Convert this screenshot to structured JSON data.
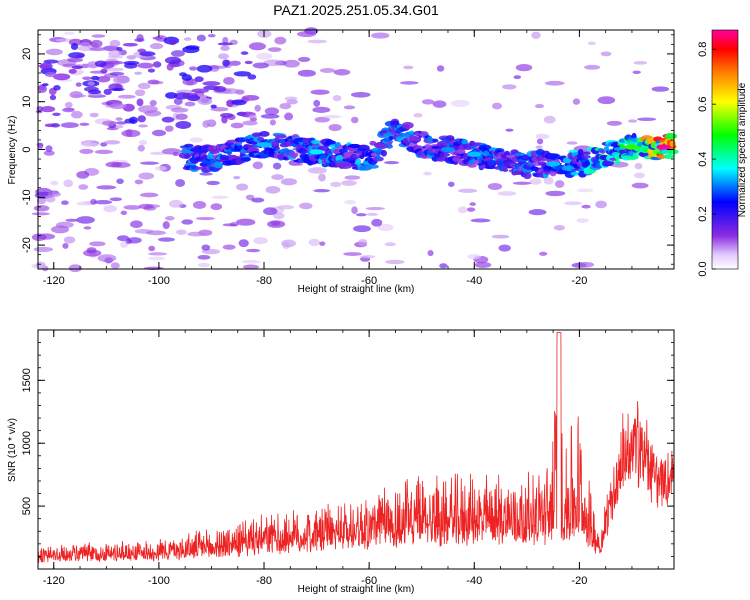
{
  "title": "PAZ1.2025.251.05.34.G01",
  "chart_data": [
    {
      "type": "heatmap",
      "xlabel": "Height of straight line (km)",
      "ylabel": "Frequency (Hz)",
      "xlim": [
        -123,
        -2
      ],
      "ylim": [
        -25,
        25
      ],
      "xticks": [
        -120,
        -100,
        -80,
        -60,
        -40,
        -20
      ],
      "yticks": [
        -20,
        -10,
        0,
        10,
        20
      ],
      "colorbar": {
        "label": "Normalized spectral amplitude",
        "range": [
          0,
          0.87
        ],
        "ticks": [
          0.0,
          0.2,
          0.4,
          0.6,
          0.8
        ],
        "colormap": [
          "#ffffff",
          "#8a2be2",
          "#0000ff",
          "#00ffff",
          "#00ff00",
          "#ffff00",
          "#ff8000",
          "#ff0000",
          "#ff00a0"
        ]
      },
      "ridge": {
        "description_points_x": [
          -120,
          -110,
          -100,
          -90,
          -80,
          -70,
          -60,
          -55,
          -50,
          -40,
          -30,
          -20,
          -10,
          -2
        ],
        "description_points_freq": [
          -1,
          -1,
          -1,
          -2,
          1,
          -0.5,
          -2,
          4,
          1,
          -1,
          -3,
          -3,
          0.5,
          0.5
        ],
        "peak_amplitude_x": [
          -80,
          -70,
          -45,
          -40,
          -25,
          -10,
          -4
        ],
        "peak_amplitude": [
          0.3,
          0.32,
          0.28,
          0.3,
          0.3,
          0.45,
          0.87
        ]
      }
    },
    {
      "type": "line",
      "xlabel": "Height of straight line (km)",
      "ylabel": "SNR (10 * v/v)",
      "xlim": [
        -123,
        -2
      ],
      "ylim": [
        0,
        1900
      ],
      "xticks": [
        -120,
        -100,
        -80,
        -60,
        -40,
        -20
      ],
      "yticks": [
        500,
        1000,
        1500
      ],
      "color": "#ee2222",
      "envelope": {
        "x": [
          -123,
          -110,
          -100,
          -90,
          -82,
          -75,
          -65,
          -55,
          -50,
          -45,
          -40,
          -35,
          -30,
          -26,
          -24,
          -23,
          -22,
          -21,
          -20,
          -18,
          -16,
          -15,
          -13,
          -11,
          -9,
          -7,
          -5,
          -3,
          -2
        ],
        "base": [
          70,
          80,
          90,
          110,
          140,
          170,
          200,
          220,
          240,
          250,
          250,
          260,
          260,
          270,
          300,
          260,
          260,
          260,
          250,
          200,
          150,
          300,
          600,
          800,
          850,
          750,
          650,
          650,
          750
        ],
        "amp": [
          120,
          140,
          160,
          220,
          280,
          300,
          350,
          500,
          550,
          500,
          520,
          520,
          500,
          600,
          1550,
          700,
          1000,
          1000,
          1200,
          500,
          100,
          250,
          400,
          400,
          500,
          250,
          200,
          150,
          150
        ]
      }
    }
  ]
}
